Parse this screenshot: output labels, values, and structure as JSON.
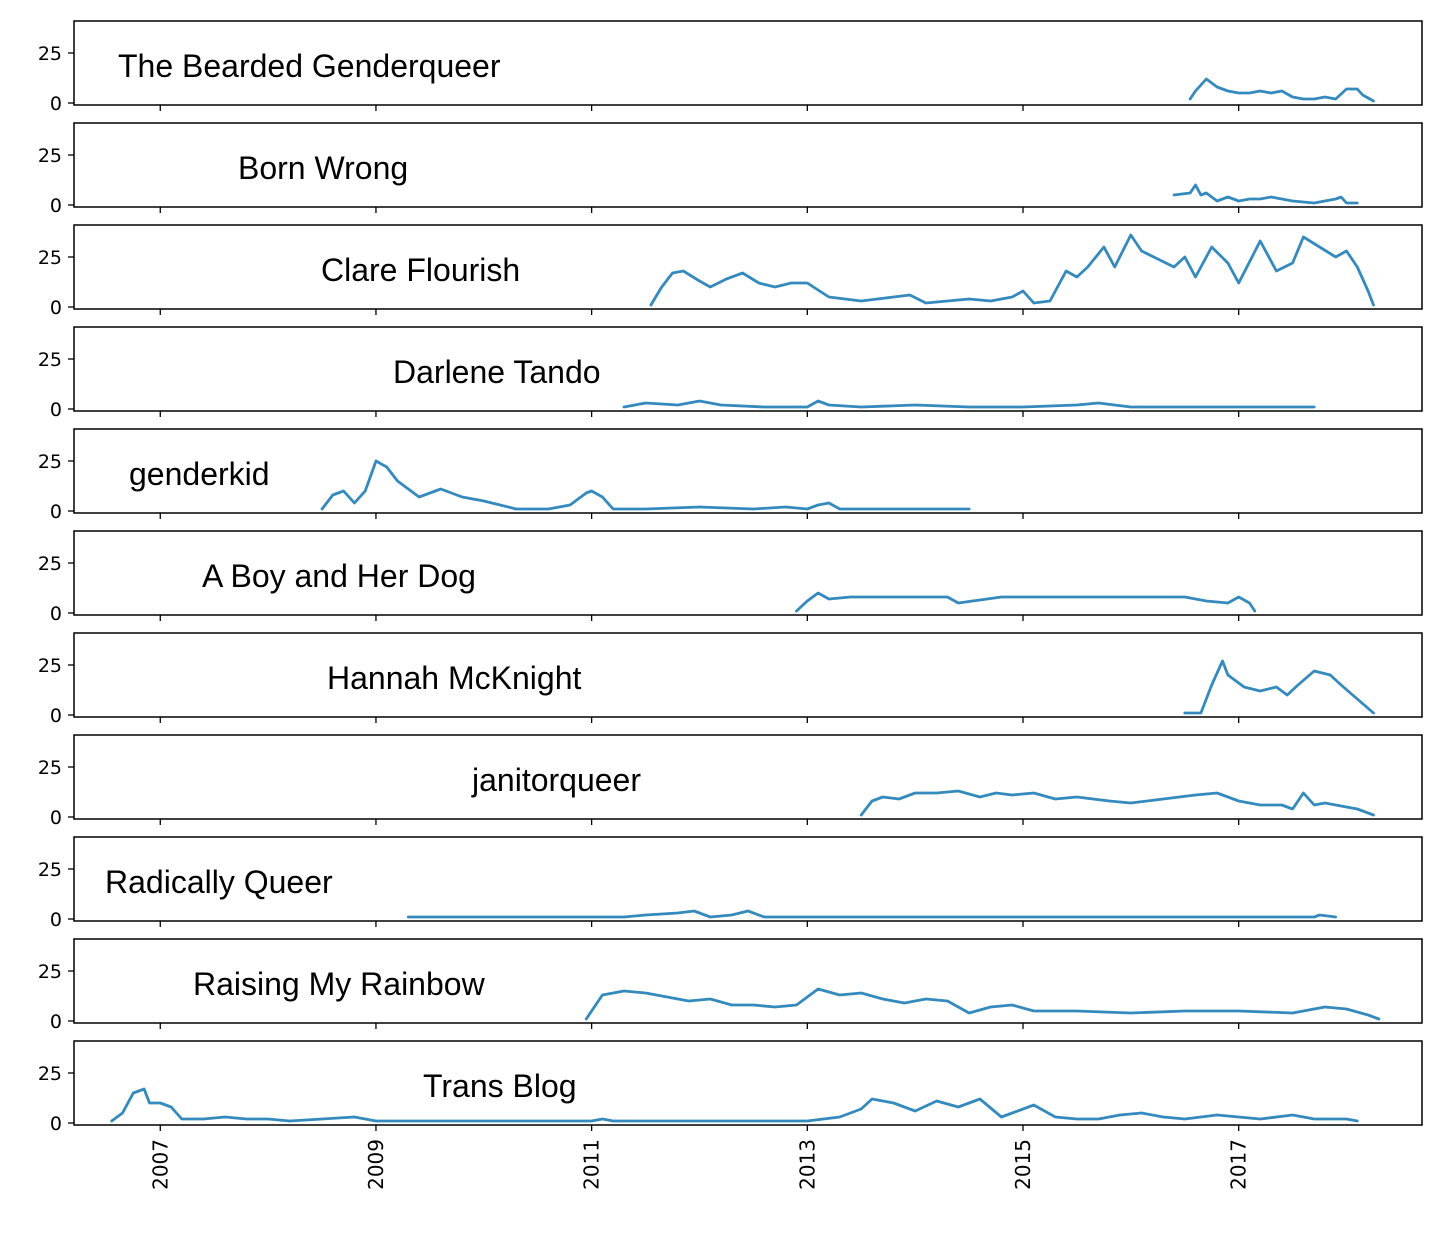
{
  "chart_data": {
    "type": "line",
    "layout": "small-multiples",
    "shared_x": true,
    "xlabel": "",
    "ylabel": "",
    "xlim": [
      2006.2,
      2018.7
    ],
    "x_ticks": [
      "2007",
      "2009",
      "2011",
      "2013",
      "2015",
      "2017"
    ],
    "ylim": [
      0,
      40
    ],
    "y_ticks": [
      "0",
      "25"
    ],
    "grid": false,
    "line_color": "#348abd",
    "panels": [
      {
        "title": "The Bearded Genderqueer",
        "x": [
          2016.55,
          2016.6,
          2016.7,
          2016.8,
          2016.9,
          2017.0,
          2017.1,
          2017.2,
          2017.3,
          2017.4,
          2017.5,
          2017.6,
          2017.7,
          2017.8,
          2017.9,
          2018.0,
          2018.1,
          2018.15,
          2018.25
        ],
        "y": [
          2,
          6,
          12,
          8,
          6,
          5,
          5,
          6,
          5,
          6,
          3,
          2,
          2,
          3,
          2,
          7,
          7,
          4,
          1
        ]
      },
      {
        "title": "Born Wrong",
        "x": [
          2016.4,
          2016.55,
          2016.6,
          2016.65,
          2016.7,
          2016.8,
          2016.9,
          2017.0,
          2017.1,
          2017.2,
          2017.3,
          2017.5,
          2017.7,
          2017.8,
          2017.9,
          2017.95,
          2018.0,
          2018.1
        ],
        "y": [
          5,
          6,
          10,
          5,
          6,
          2,
          4,
          2,
          3,
          3,
          4,
          2,
          1,
          2,
          3,
          4,
          1,
          1
        ]
      },
      {
        "title": "Clare Flourish",
        "x": [
          2011.55,
          2011.65,
          2011.75,
          2011.85,
          2012.0,
          2012.1,
          2012.25,
          2012.4,
          2012.55,
          2012.7,
          2012.85,
          2013.0,
          2013.2,
          2013.35,
          2013.5,
          2013.65,
          2013.8,
          2013.95,
          2014.1,
          2014.3,
          2014.5,
          2014.7,
          2014.9,
          2015.0,
          2015.1,
          2015.25,
          2015.4,
          2015.5,
          2015.6,
          2015.75,
          2015.85,
          2016.0,
          2016.1,
          2016.25,
          2016.4,
          2016.5,
          2016.6,
          2016.75,
          2016.9,
          2017.0,
          2017.2,
          2017.35,
          2017.5,
          2017.6,
          2017.75,
          2017.9,
          2018.0,
          2018.1,
          2018.2,
          2018.25
        ],
        "y": [
          1,
          10,
          17,
          18,
          13,
          10,
          14,
          17,
          12,
          10,
          12,
          12,
          5,
          4,
          3,
          4,
          5,
          6,
          2,
          3,
          4,
          3,
          5,
          8,
          2,
          3,
          18,
          15,
          20,
          30,
          20,
          36,
          28,
          24,
          20,
          25,
          15,
          30,
          22,
          12,
          33,
          18,
          22,
          35,
          30,
          25,
          28,
          20,
          8,
          1
        ]
      },
      {
        "title": "Darlene Tando",
        "x": [
          2011.3,
          2011.5,
          2011.8,
          2012.0,
          2012.2,
          2012.6,
          2013.0,
          2013.1,
          2013.2,
          2013.5,
          2014.0,
          2014.5,
          2015.0,
          2015.5,
          2015.7,
          2016.0,
          2016.5,
          2017.0,
          2017.5,
          2017.7
        ],
        "y": [
          1,
          3,
          2,
          4,
          2,
          1,
          1,
          4,
          2,
          1,
          2,
          1,
          1,
          2,
          3,
          1,
          1,
          1,
          1,
          1
        ]
      },
      {
        "title": "genderkid",
        "x": [
          2008.5,
          2008.6,
          2008.7,
          2008.8,
          2008.9,
          2009.0,
          2009.1,
          2009.2,
          2009.4,
          2009.6,
          2009.8,
          2010.0,
          2010.3,
          2010.6,
          2010.8,
          2010.95,
          2011.0,
          2011.1,
          2011.2,
          2011.5,
          2012.0,
          2012.5,
          2012.8,
          2013.0,
          2013.1,
          2013.2,
          2013.3,
          2013.5,
          2014.0,
          2014.5
        ],
        "y": [
          1,
          8,
          10,
          4,
          10,
          25,
          22,
          15,
          7,
          11,
          7,
          5,
          1,
          1,
          3,
          9,
          10,
          7,
          1,
          1,
          2,
          1,
          2,
          1,
          3,
          4,
          1,
          1,
          1,
          1
        ]
      },
      {
        "title": "A Boy and Her Dog",
        "x": [
          2012.9,
          2013.0,
          2013.1,
          2013.2,
          2013.4,
          2013.8,
          2014.3,
          2014.4,
          2014.8,
          2015.5,
          2016.0,
          2016.5,
          2016.7,
          2016.9,
          2017.0,
          2017.1,
          2017.15
        ],
        "y": [
          1,
          6,
          10,
          7,
          8,
          8,
          8,
          5,
          8,
          8,
          8,
          8,
          6,
          5,
          8,
          5,
          1
        ]
      },
      {
        "title": "Hannah McKnight",
        "x": [
          2016.5,
          2016.65,
          2016.75,
          2016.85,
          2016.9,
          2016.95,
          2017.05,
          2017.2,
          2017.35,
          2017.45,
          2017.55,
          2017.7,
          2017.85,
          2017.95,
          2018.1,
          2018.25
        ],
        "y": [
          1,
          1,
          15,
          27,
          20,
          18,
          14,
          12,
          14,
          10,
          15,
          22,
          20,
          15,
          8,
          1
        ]
      },
      {
        "title": "janitorqueer",
        "x": [
          2013.5,
          2013.6,
          2013.7,
          2013.85,
          2014.0,
          2014.2,
          2014.4,
          2014.6,
          2014.75,
          2014.9,
          2015.1,
          2015.3,
          2015.5,
          2015.8,
          2016.0,
          2016.3,
          2016.6,
          2016.8,
          2017.0,
          2017.2,
          2017.4,
          2017.5,
          2017.6,
          2017.7,
          2017.8,
          2018.0,
          2018.1,
          2018.25
        ],
        "y": [
          1,
          8,
          10,
          9,
          12,
          12,
          13,
          10,
          12,
          11,
          12,
          9,
          10,
          8,
          7,
          9,
          11,
          12,
          8,
          6,
          6,
          4,
          12,
          6,
          7,
          5,
          4,
          1
        ]
      },
      {
        "title": "Radically Queer",
        "x": [
          2009.3,
          2010.0,
          2011.0,
          2011.3,
          2011.5,
          2011.8,
          2011.95,
          2012.1,
          2012.3,
          2012.45,
          2012.6,
          2012.8,
          2013.0,
          2013.3,
          2014.0,
          2015.0,
          2016.0,
          2017.0,
          2017.7,
          2017.75,
          2017.9
        ],
        "y": [
          1,
          1,
          1,
          1,
          2,
          3,
          4,
          1,
          2,
          4,
          1,
          1,
          1,
          1,
          1,
          1,
          1,
          1,
          1,
          2,
          1
        ]
      },
      {
        "title": "Raising My Rainbow",
        "x": [
          2010.95,
          2011.1,
          2011.3,
          2011.5,
          2011.7,
          2011.9,
          2012.1,
          2012.3,
          2012.5,
          2012.7,
          2012.9,
          2013.1,
          2013.3,
          2013.5,
          2013.7,
          2013.9,
          2014.1,
          2014.3,
          2014.5,
          2014.7,
          2014.9,
          2015.1,
          2015.5,
          2016.0,
          2016.5,
          2017.0,
          2017.5,
          2017.8,
          2018.0,
          2018.2,
          2018.3
        ],
        "y": [
          1,
          13,
          15,
          14,
          12,
          10,
          11,
          8,
          8,
          7,
          8,
          16,
          13,
          14,
          11,
          9,
          11,
          10,
          4,
          7,
          8,
          5,
          5,
          4,
          5,
          5,
          4,
          7,
          6,
          3,
          1
        ]
      },
      {
        "title": "Trans Blog",
        "x": [
          2006.55,
          2006.65,
          2006.75,
          2006.85,
          2006.9,
          2007.0,
          2007.1,
          2007.2,
          2007.4,
          2007.6,
          2007.8,
          2008.0,
          2008.2,
          2008.5,
          2008.8,
          2009.0,
          2010.0,
          2011.0,
          2011.1,
          2011.2,
          2012.0,
          2012.5,
          2013.0,
          2013.3,
          2013.5,
          2013.6,
          2013.8,
          2014.0,
          2014.2,
          2014.4,
          2014.6,
          2014.8,
          2014.9,
          2015.1,
          2015.3,
          2015.5,
          2015.7,
          2015.9,
          2016.1,
          2016.3,
          2016.5,
          2016.8,
          2017.0,
          2017.2,
          2017.5,
          2017.7,
          2017.9,
          2018.0,
          2018.1
        ],
        "y": [
          1,
          5,
          15,
          17,
          10,
          10,
          8,
          2,
          2,
          3,
          2,
          2,
          1,
          2,
          3,
          1,
          1,
          1,
          2,
          1,
          1,
          1,
          1,
          3,
          7,
          12,
          10,
          6,
          11,
          8,
          12,
          3,
          5,
          9,
          3,
          2,
          2,
          4,
          5,
          3,
          2,
          4,
          3,
          2,
          4,
          2,
          2,
          2,
          1
        ]
      }
    ]
  }
}
